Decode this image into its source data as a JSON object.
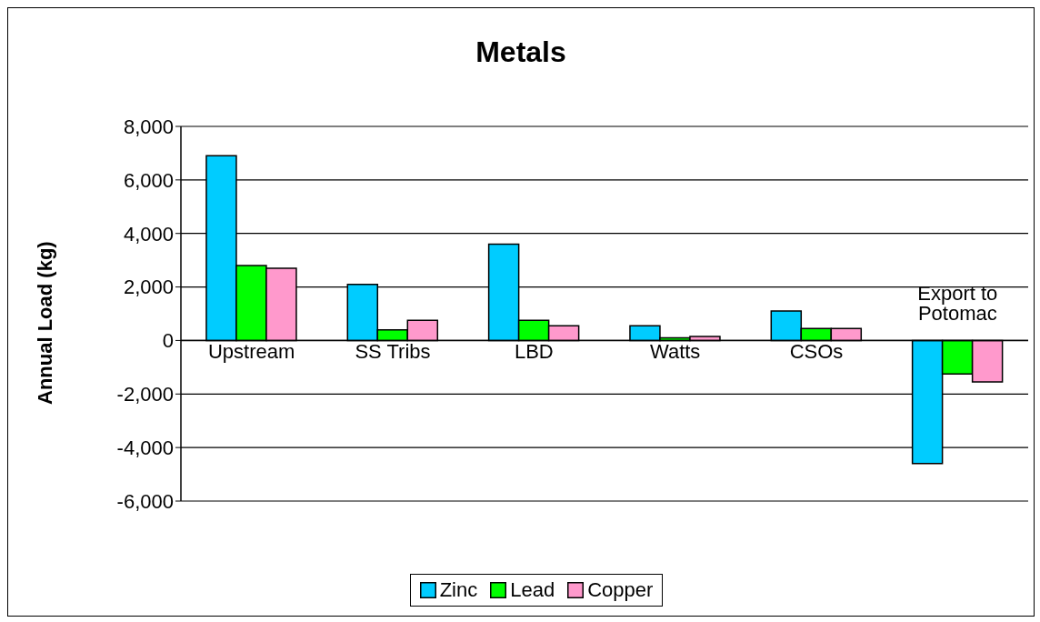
{
  "chart_data": {
    "type": "bar",
    "title": "Metals",
    "ylabel": "Annual Load (kg)",
    "categories": [
      "Upstream",
      "SS Tribs",
      "LBD",
      "Watts",
      "CSOs",
      "Export to Potomac"
    ],
    "series": [
      {
        "name": "Zinc",
        "color": "#00ccff",
        "values": [
          6900,
          2100,
          3600,
          550,
          1100,
          -4600
        ]
      },
      {
        "name": "Lead",
        "color": "#00ff00",
        "values": [
          2800,
          400,
          750,
          100,
          450,
          -1250
        ]
      },
      {
        "name": "Copper",
        "color": "#ff99cc",
        "values": [
          2700,
          750,
          550,
          150,
          450,
          -1550
        ]
      }
    ],
    "ylim": [
      -6000,
      8000
    ],
    "yticks": [
      {
        "value": -6000,
        "label": "-6,000"
      },
      {
        "value": -4000,
        "label": "-4,000"
      },
      {
        "value": -2000,
        "label": "-2,000"
      },
      0,
      {
        "value": 2000,
        "label": "2,000"
      },
      {
        "value": 4000,
        "label": "4,000"
      },
      {
        "value": 6000,
        "label": "6,000"
      },
      {
        "value": 8000,
        "label": "8,000"
      }
    ],
    "grid": "y",
    "legend": "bottom"
  }
}
